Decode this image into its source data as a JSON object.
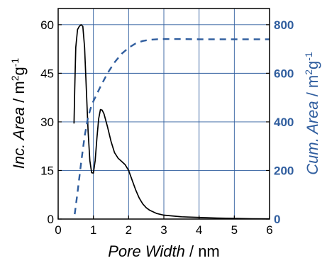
{
  "chart_data": {
    "type": "line",
    "xlabel": {
      "italic": "Pore Width",
      "rest": " / nm"
    },
    "ylabel_left": {
      "italic": "Inc. Area",
      "rest": " / m",
      "sup1": "2",
      "mid": "g",
      "sup2": "-1"
    },
    "ylabel_right": {
      "italic": "Cum. Area",
      "rest": " / m",
      "sup1": "2",
      "mid": "g",
      "sup2": "-1"
    },
    "xlim": [
      0,
      6
    ],
    "ylim_left": [
      0,
      65
    ],
    "ylim_right": [
      0,
      866.67
    ],
    "x_ticks": [
      "0",
      "1",
      "2",
      "3",
      "4",
      "5",
      "6"
    ],
    "y_ticks_left": [
      "0",
      "15",
      "30",
      "45",
      "60"
    ],
    "y_ticks_right": [
      "0",
      "200",
      "400",
      "600",
      "800"
    ],
    "grid": true,
    "colors": {
      "left_axis": "#000000",
      "right_axis": "#2f5d9e",
      "grid": "#2f5d9e"
    },
    "series": [
      {
        "axis": "left",
        "style": "solid",
        "x": [
          0.45,
          0.47,
          0.5,
          0.55,
          0.6,
          0.65,
          0.7,
          0.75,
          0.8,
          0.85,
          0.9,
          0.95,
          1.0,
          1.05,
          1.1,
          1.15,
          1.2,
          1.25,
          1.3,
          1.35,
          1.4,
          1.5,
          1.6,
          1.7,
          1.8,
          1.9,
          2.0,
          2.1,
          2.2,
          2.3,
          2.4,
          2.5,
          2.6,
          2.8,
          3.0,
          3.5,
          4.0,
          4.5,
          5.0,
          5.5,
          6.0
        ],
        "y": [
          29.5,
          40,
          53,
          58.5,
          59.5,
          60,
          59.5,
          53,
          40,
          27,
          18,
          14.3,
          14.2,
          18,
          25,
          31,
          33.8,
          33.6,
          32.5,
          30.5,
          28.5,
          24,
          20.5,
          18.8,
          17.8,
          16.8,
          15,
          12,
          9,
          6.5,
          4.7,
          3.5,
          2.7,
          1.7,
          1.2,
          0.7,
          0.5,
          0.3,
          0.2,
          0.1,
          0.05
        ]
      },
      {
        "axis": "right",
        "style": "dashed",
        "x": [
          0.47,
          0.55,
          0.65,
          0.75,
          0.85,
          0.95,
          1.05,
          1.2,
          1.4,
          1.6,
          1.8,
          2.0,
          2.2,
          2.4,
          2.6,
          2.8,
          3.0,
          3.5,
          4.0,
          5.0,
          6.0
        ],
        "y": [
          20,
          110,
          230,
          340,
          420,
          470,
          500,
          545,
          600,
          645,
          680,
          705,
          723,
          733,
          738,
          740,
          741,
          741,
          740,
          740,
          740
        ]
      }
    ]
  }
}
